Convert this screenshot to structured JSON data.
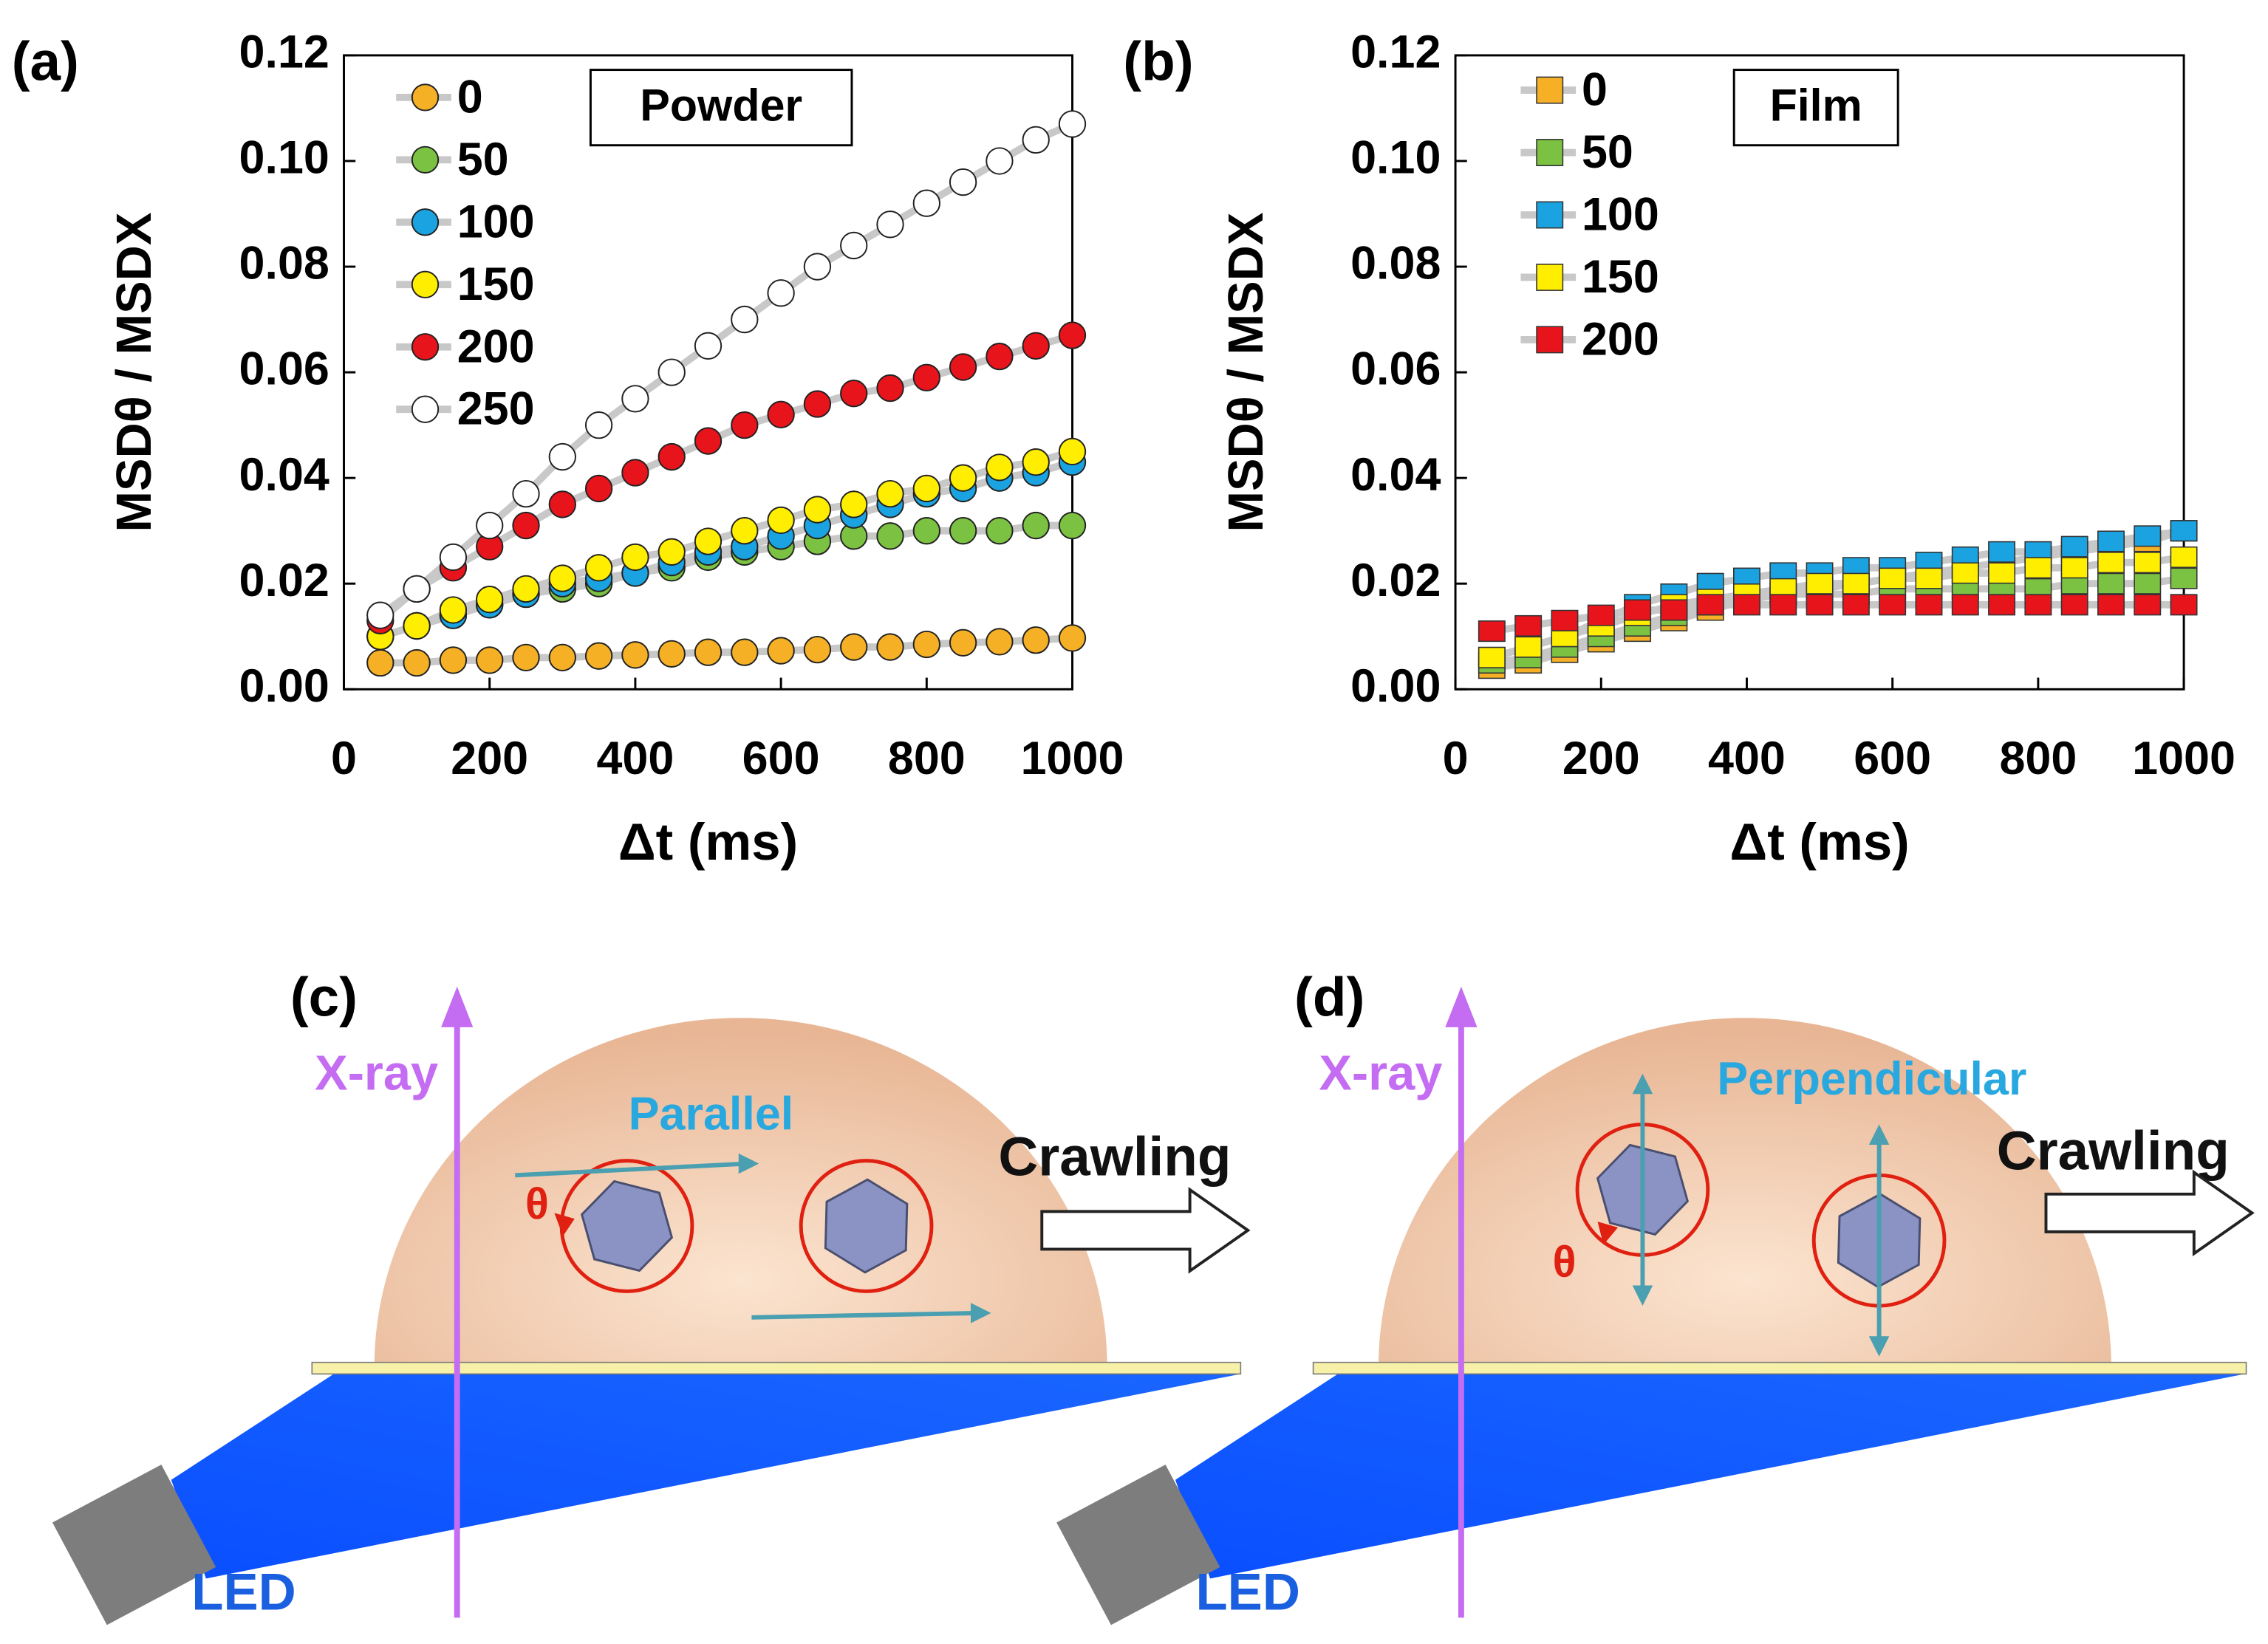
{
  "chart_data": [
    {
      "type": "scatter",
      "panel": "(a)",
      "annotation": "Powder",
      "marker": "circle",
      "legend": "upper left",
      "xlabel": "Δt (ms)",
      "ylabel": "MSDθ / MSDX",
      "x": [
        50,
        100,
        150,
        200,
        250,
        300,
        350,
        400,
        450,
        500,
        550,
        600,
        650,
        700,
        750,
        800,
        850,
        900,
        950,
        1000
      ],
      "xlim": [
        0,
        1000
      ],
      "xticks": [
        0,
        200,
        400,
        600,
        800,
        1000
      ],
      "ylim": [
        0,
        0.12
      ],
      "yticks": [
        {
          "value": 0,
          "label": "0.00"
        },
        {
          "value": 0.02,
          "label": "0.02"
        },
        {
          "value": 0.04,
          "label": "0.04"
        },
        {
          "value": 0.06,
          "label": "0.06"
        },
        {
          "value": 0.08,
          "label": "0.08"
        },
        {
          "value": 0.1,
          "label": "0.10"
        },
        {
          "value": 0.12,
          "label": "0.12"
        }
      ],
      "series": [
        {
          "name": "0",
          "color": "#f5b026",
          "values": [
            0.005,
            0.005,
            0.0055,
            0.0055,
            0.006,
            0.006,
            0.0063,
            0.0065,
            0.0067,
            0.007,
            0.007,
            0.0073,
            0.0075,
            0.008,
            0.008,
            0.0085,
            0.0088,
            0.009,
            0.0093,
            0.0097
          ]
        },
        {
          "name": "50",
          "color": "#7cc242",
          "values": [
            0.01,
            0.012,
            0.014,
            0.016,
            0.018,
            0.019,
            0.02,
            0.022,
            0.023,
            0.025,
            0.026,
            0.027,
            0.028,
            0.029,
            0.029,
            0.03,
            0.03,
            0.03,
            0.031,
            0.031
          ]
        },
        {
          "name": "100",
          "color": "#1aa3e0",
          "values": [
            0.01,
            0.012,
            0.014,
            0.016,
            0.018,
            0.02,
            0.021,
            0.022,
            0.024,
            0.026,
            0.027,
            0.029,
            0.031,
            0.033,
            0.035,
            0.037,
            0.038,
            0.04,
            0.041,
            0.043
          ]
        },
        {
          "name": "150",
          "color": "#ffee00",
          "values": [
            0.01,
            0.012,
            0.015,
            0.017,
            0.019,
            0.021,
            0.023,
            0.025,
            0.026,
            0.028,
            0.03,
            0.032,
            0.034,
            0.035,
            0.037,
            0.038,
            0.04,
            0.042,
            0.043,
            0.045
          ]
        },
        {
          "name": "200",
          "color": "#e8141c",
          "values": [
            0.013,
            0.019,
            0.023,
            0.027,
            0.031,
            0.035,
            0.038,
            0.041,
            0.044,
            0.047,
            0.05,
            0.052,
            0.054,
            0.056,
            0.057,
            0.059,
            0.061,
            0.063,
            0.065,
            0.067
          ]
        },
        {
          "name": "250",
          "color": "#ffffff",
          "values": [
            0.014,
            0.019,
            0.025,
            0.031,
            0.037,
            0.044,
            0.05,
            0.055,
            0.06,
            0.065,
            0.07,
            0.075,
            0.08,
            0.084,
            0.088,
            0.092,
            0.096,
            0.1,
            0.104,
            0.107
          ]
        }
      ]
    },
    {
      "type": "scatter",
      "panel": "(b)",
      "annotation": "Film",
      "marker": "square",
      "legend": "upper left",
      "xlabel": "Δt (ms)",
      "ylabel": "MSDθ / MSDX",
      "x": [
        50,
        100,
        150,
        200,
        250,
        300,
        350,
        400,
        450,
        500,
        550,
        600,
        650,
        700,
        750,
        800,
        850,
        900,
        950,
        1000
      ],
      "xlim": [
        0,
        1000
      ],
      "xticks": [
        0,
        200,
        400,
        600,
        800,
        1000
      ],
      "ylim": [
        0,
        0.12
      ],
      "yticks": [
        {
          "value": 0,
          "label": "0.00"
        },
        {
          "value": 0.02,
          "label": "0.02"
        },
        {
          "value": 0.04,
          "label": "0.04"
        },
        {
          "value": 0.06,
          "label": "0.06"
        },
        {
          "value": 0.08,
          "label": "0.08"
        },
        {
          "value": 0.1,
          "label": "0.10"
        },
        {
          "value": 0.12,
          "label": "0.12"
        }
      ],
      "series": [
        {
          "name": "0",
          "color": "#f5b026",
          "values": [
            0.004,
            0.005,
            0.007,
            0.009,
            0.011,
            0.013,
            0.015,
            0.017,
            0.018,
            0.019,
            0.02,
            0.021,
            0.022,
            0.023,
            0.024,
            0.025,
            0.026,
            0.027,
            0.028,
            0.03
          ]
        },
        {
          "name": "50",
          "color": "#7cc242",
          "values": [
            0.005,
            0.006,
            0.008,
            0.01,
            0.012,
            0.014,
            0.016,
            0.017,
            0.018,
            0.018,
            0.018,
            0.019,
            0.019,
            0.019,
            0.019,
            0.019,
            0.02,
            0.02,
            0.02,
            0.021
          ]
        },
        {
          "name": "100",
          "color": "#1aa3e0",
          "values": [
            0.006,
            0.008,
            0.01,
            0.013,
            0.016,
            0.018,
            0.02,
            0.021,
            0.022,
            0.022,
            0.023,
            0.023,
            0.024,
            0.025,
            0.026,
            0.026,
            0.027,
            0.028,
            0.029,
            0.03
          ]
        },
        {
          "name": "150",
          "color": "#ffee00",
          "values": [
            0.006,
            0.008,
            0.01,
            0.012,
            0.014,
            0.016,
            0.017,
            0.018,
            0.019,
            0.02,
            0.02,
            0.021,
            0.021,
            0.022,
            0.022,
            0.023,
            0.023,
            0.024,
            0.024,
            0.025
          ]
        },
        {
          "name": "200",
          "color": "#e8141c",
          "values": [
            0.011,
            0.012,
            0.013,
            0.014,
            0.015,
            0.015,
            0.016,
            0.016,
            0.016,
            0.016,
            0.016,
            0.016,
            0.016,
            0.016,
            0.016,
            0.016,
            0.016,
            0.016,
            0.016,
            0.016
          ]
        }
      ]
    }
  ],
  "diagrams": [
    {
      "label": "(c)",
      "beam": "X-ray",
      "orientation": "Parallel",
      "motion": "Crawling",
      "angle": "θ",
      "source": "LED"
    },
    {
      "label": "(d)",
      "beam": "X-ray",
      "orientation": "Perpendicular",
      "motion": "Crawling",
      "angle": "θ",
      "source": "LED"
    }
  ]
}
